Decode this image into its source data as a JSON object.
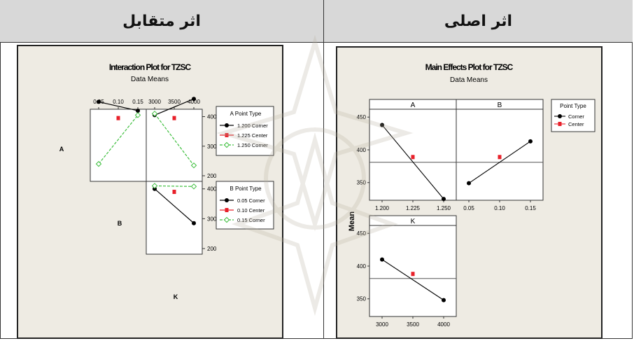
{
  "headers": {
    "left": "اثر متقابل",
    "right": "اثر اصلی"
  },
  "colors": {
    "corner": "#000000",
    "center": "#e8202a",
    "green": "#3fbf3f",
    "panel_bg": "#eeebe3"
  },
  "chart_data": [
    {
      "type": "line",
      "title": "Interaction Plot for TZSC",
      "subtitle": "Data Means",
      "factors": [
        {
          "name": "A",
          "levels": [
            "1.200",
            "1.225",
            "1.250"
          ]
        },
        {
          "name": "B",
          "levels": [
            "0.05",
            "0.10",
            "0.15"
          ]
        },
        {
          "name": "K",
          "levels": [
            "3000",
            "3500",
            "4000"
          ]
        }
      ],
      "top_ticks_B": [
        "0.05",
        "0.10",
        "0.15"
      ],
      "top_ticks_K": [
        "3000",
        "3500",
        "4000"
      ],
      "yticks": [
        200,
        300,
        400
      ],
      "ylim": [
        200,
        400
      ],
      "panels": [
        {
          "row": "A",
          "col": "B",
          "series": [
            {
              "name": "1.200 Corner",
              "style": "corner",
              "x": [
                "0.05",
                "0.15"
              ],
              "y": [
                450,
                420
              ]
            },
            {
              "name": "1.225 Center",
              "style": "center",
              "x": [
                "0.10"
              ],
              "y": [
                395
              ]
            },
            {
              "name": "1.250 Corner",
              "style": "green",
              "x": [
                "0.05",
                "0.15"
              ],
              "y": [
                240,
                405
              ]
            }
          ]
        },
        {
          "row": "A",
          "col": "K",
          "series": [
            {
              "name": "1.200 Corner",
              "style": "corner",
              "x": [
                "3000",
                "4000"
              ],
              "y": [
                405,
                460
              ]
            },
            {
              "name": "1.225 Center",
              "style": "center",
              "x": [
                "3500"
              ],
              "y": [
                395
              ]
            },
            {
              "name": "1.250 Corner",
              "style": "green",
              "x": [
                "3000",
                "4000"
              ],
              "y": [
                410,
                235
              ]
            }
          ]
        },
        {
          "row": "B",
          "col": "K",
          "series": [
            {
              "name": "0.05 Corner",
              "style": "corner",
              "x": [
                "3000",
                "4000"
              ],
              "y": [
                400,
                285
              ]
            },
            {
              "name": "0.10 Center",
              "style": "center",
              "x": [
                "3500"
              ],
              "y": [
                390
              ]
            },
            {
              "name": "0.15 Corner",
              "style": "green",
              "x": [
                "3000",
                "4000"
              ],
              "y": [
                410,
                408
              ]
            }
          ]
        }
      ],
      "legends": [
        {
          "title": "A Point Type",
          "entries": [
            {
              "label": "1.200 Corner",
              "style": "corner"
            },
            {
              "label": "1.225 Center",
              "style": "center"
            },
            {
              "label": "1.250 Corner",
              "style": "green"
            }
          ]
        },
        {
          "title": "B Point Type",
          "entries": [
            {
              "label": "0.05 Corner",
              "style": "corner"
            },
            {
              "label": "0.10 Center",
              "style": "center"
            },
            {
              "label": "0.15 Corner",
              "style": "green"
            }
          ]
        }
      ]
    },
    {
      "type": "line",
      "title": "Main Effects Plot for TZSC",
      "subtitle": "Data Means",
      "ylabel": "Mean",
      "yticks": [
        350,
        400,
        450
      ],
      "ylim": [
        323,
        462
      ],
      "grand_mean": 381,
      "panels": [
        {
          "name": "A",
          "x": [
            "1.200",
            "1.225",
            "1.250"
          ],
          "corner": {
            "x": [
              "1.200",
              "1.250"
            ],
            "y": [
              438,
              325
            ]
          },
          "center": {
            "x": [
              "1.225"
            ],
            "y": [
              389
            ]
          }
        },
        {
          "name": "B",
          "x": [
            "0.05",
            "0.10",
            "0.15"
          ],
          "corner": {
            "x": [
              "0.05",
              "0.15"
            ],
            "y": [
              349,
              413
            ]
          },
          "center": {
            "x": [
              "0.10"
            ],
            "y": [
              389
            ]
          }
        },
        {
          "name": "K",
          "x": [
            "3000",
            "3500",
            "4000"
          ],
          "corner": {
            "x": [
              "3000",
              "4000"
            ],
            "y": [
              410,
              348
            ]
          },
          "center": {
            "x": [
              "3500"
            ],
            "y": [
              388
            ]
          }
        }
      ],
      "legend": {
        "title": "Point Type",
        "entries": [
          {
            "label": "Corner",
            "style": "corner"
          },
          {
            "label": "Center",
            "style": "center"
          }
        ]
      }
    }
  ]
}
